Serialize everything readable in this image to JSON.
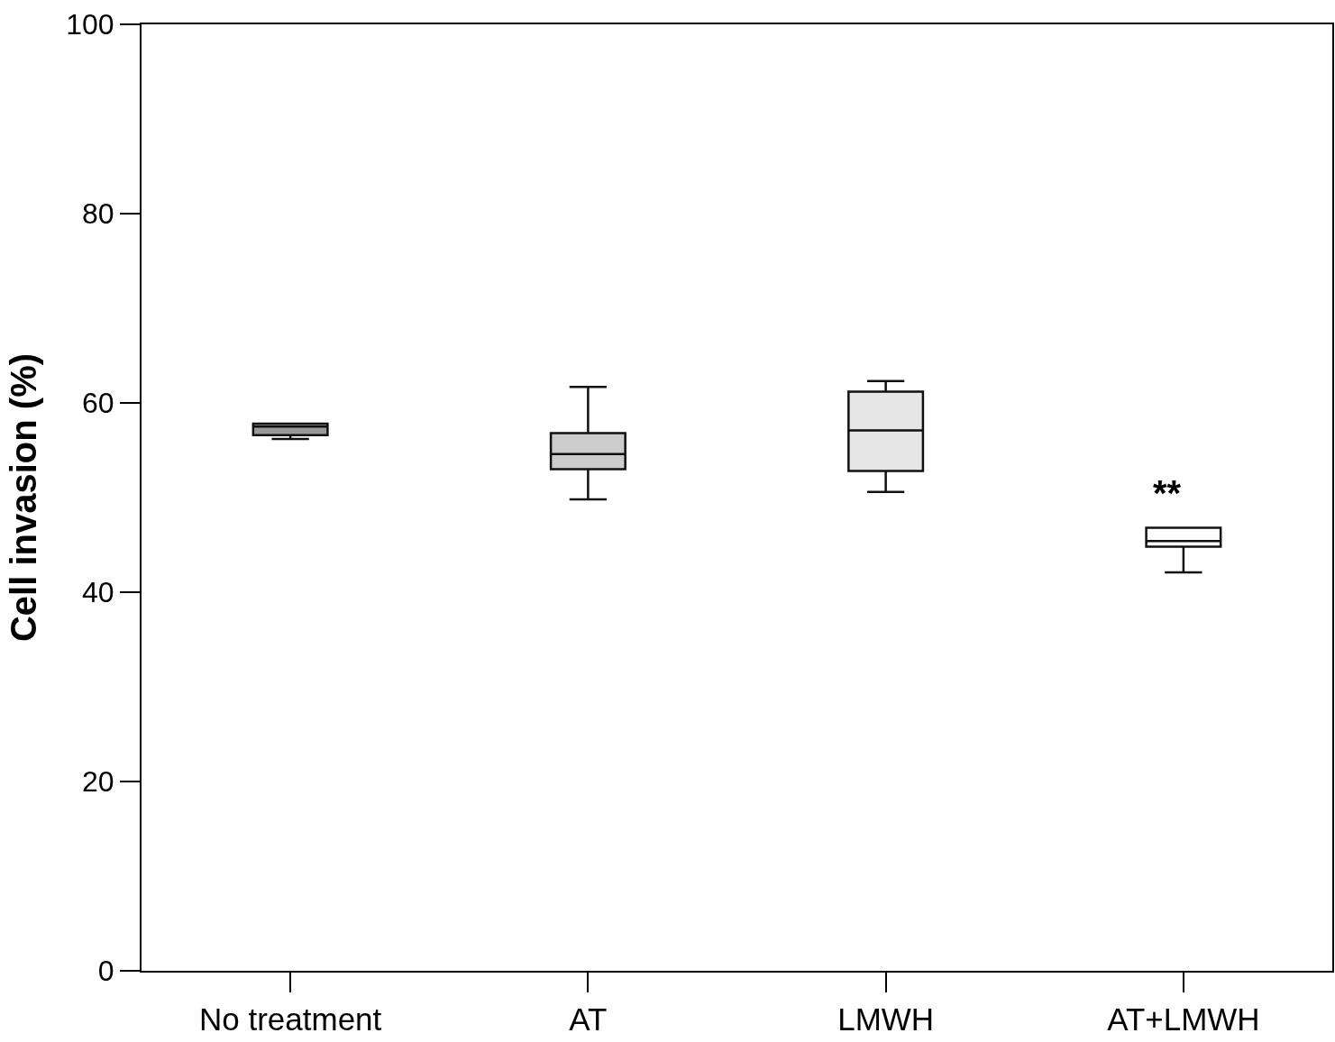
{
  "chart_data": {
    "type": "box",
    "categories": [
      "No treatment",
      "AT",
      "LMWH",
      "AT+LMWH"
    ],
    "boxes": [
      {
        "low": 56.2,
        "q1": 56.6,
        "median": 57.5,
        "q3": 57.8,
        "high": 57.8
      },
      {
        "low": 49.8,
        "q1": 53.0,
        "median": 54.6,
        "q3": 56.8,
        "high": 61.7
      },
      {
        "low": 50.6,
        "q1": 52.8,
        "median": 57.1,
        "q3": 61.2,
        "high": 62.3
      },
      {
        "low": 42.1,
        "q1": 44.8,
        "median": 45.4,
        "q3": 46.8,
        "high": 46.8
      }
    ],
    "colors": [
      "#999999",
      "#cccccc",
      "#e6e6e6",
      "#ffffff"
    ],
    "ylabel": "Cell invasion (%)",
    "ylim": [
      0,
      100
    ],
    "yticks": [
      0,
      20,
      40,
      60,
      80,
      100
    ],
    "annotations": [
      "**"
    ]
  }
}
